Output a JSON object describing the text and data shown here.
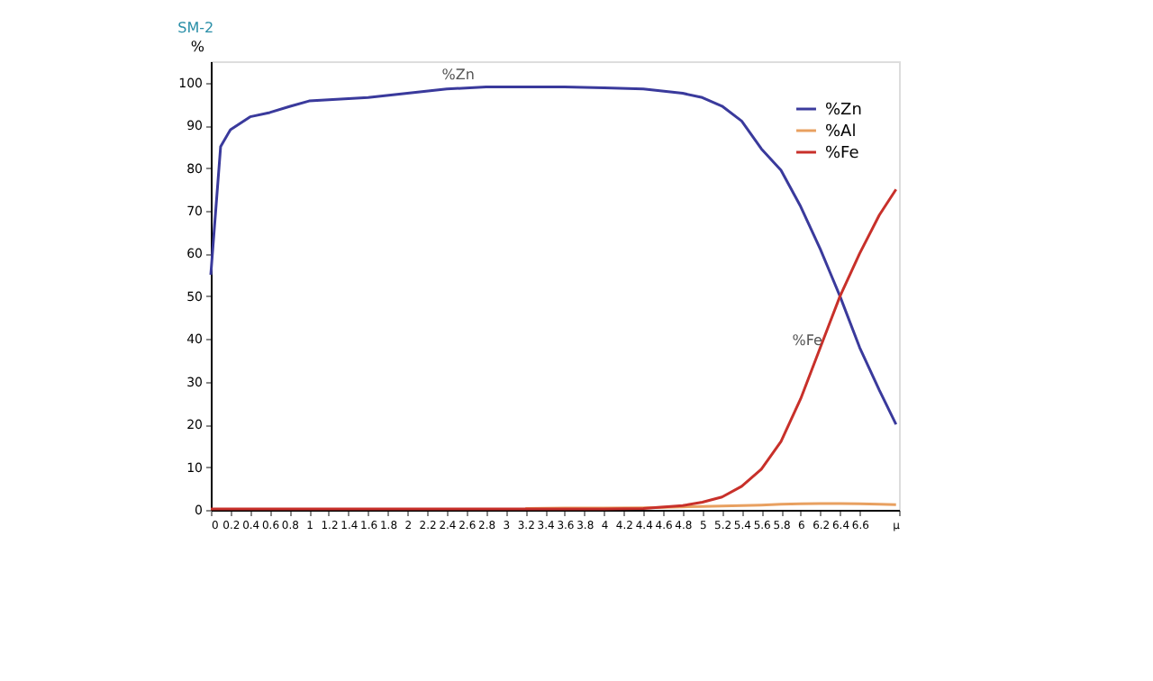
{
  "chart_data": {
    "type": "line",
    "title": "SM-2",
    "ylabel": "%",
    "x": [
      0,
      0.1,
      0.2,
      0.4,
      0.6,
      0.8,
      1.0,
      1.2,
      1.6,
      2.0,
      2.4,
      2.8,
      3.2,
      3.6,
      4.0,
      4.4,
      4.8,
      5.0,
      5.2,
      5.4,
      5.6,
      5.8,
      6.0,
      6.2,
      6.3,
      6.4,
      6.6,
      6.8,
      6.97
    ],
    "series": [
      {
        "name": "%Zn",
        "color": "#3a3a9c",
        "values": [
          55,
          85,
          89,
          92,
          93,
          94.4,
          95.7,
          96,
          96.5,
          97.5,
          98.5,
          99,
          99,
          99,
          98.8,
          98.5,
          97.5,
          96.5,
          94.5,
          91,
          84.5,
          79.5,
          71,
          61,
          55.5,
          50,
          38,
          28,
          20
        ]
      },
      {
        "name": "%Al",
        "color": "#e8a060",
        "values": [
          null,
          null,
          null,
          null,
          null,
          null,
          null,
          null,
          null,
          null,
          null,
          null,
          0.3,
          0.4,
          0.4,
          0.5,
          0.7,
          0.8,
          0.9,
          1.0,
          1.1,
          1.3,
          1.4,
          1.5,
          1.5,
          1.5,
          1.4,
          1.3,
          1.2
        ]
      },
      {
        "name": "%Fe",
        "color": "#c8302a",
        "values": [
          0.2,
          0.2,
          0.2,
          0.2,
          0.2,
          0.2,
          0.2,
          0.2,
          0.2,
          0.2,
          0.2,
          0.2,
          0.2,
          0.2,
          0.2,
          0.3,
          1,
          1.8,
          3,
          5.5,
          9.5,
          16,
          26,
          38,
          44,
          50,
          60,
          69,
          75
        ]
      }
    ],
    "annotations": [
      {
        "text": "%Zn",
        "x": 2.7,
        "y": 99
      },
      {
        "text": "%Fe",
        "x": 6.25,
        "y": 37
      }
    ],
    "xlim": [
      0,
      7
    ],
    "ylim": [
      0,
      105
    ],
    "xticks": [
      0,
      0.2,
      0.4,
      0.6,
      0.8,
      1,
      1.2,
      1.4,
      1.6,
      1.8,
      2,
      2.2,
      2.4,
      2.6,
      2.8,
      3,
      3.2,
      3.4,
      3.6,
      3.8,
      4,
      4.2,
      4.4,
      4.6,
      4.8,
      5,
      5.2,
      5.4,
      5.6,
      5.8,
      6,
      6.2,
      6.4,
      6.6,
      {
        "value": 7,
        "label": "µ"
      }
    ],
    "yticks": [
      0,
      10,
      20,
      30,
      40,
      50,
      60,
      70,
      80,
      90,
      100
    ],
    "grid": false,
    "legend": "top right",
    "marker": "none",
    "line_style": "solid"
  }
}
